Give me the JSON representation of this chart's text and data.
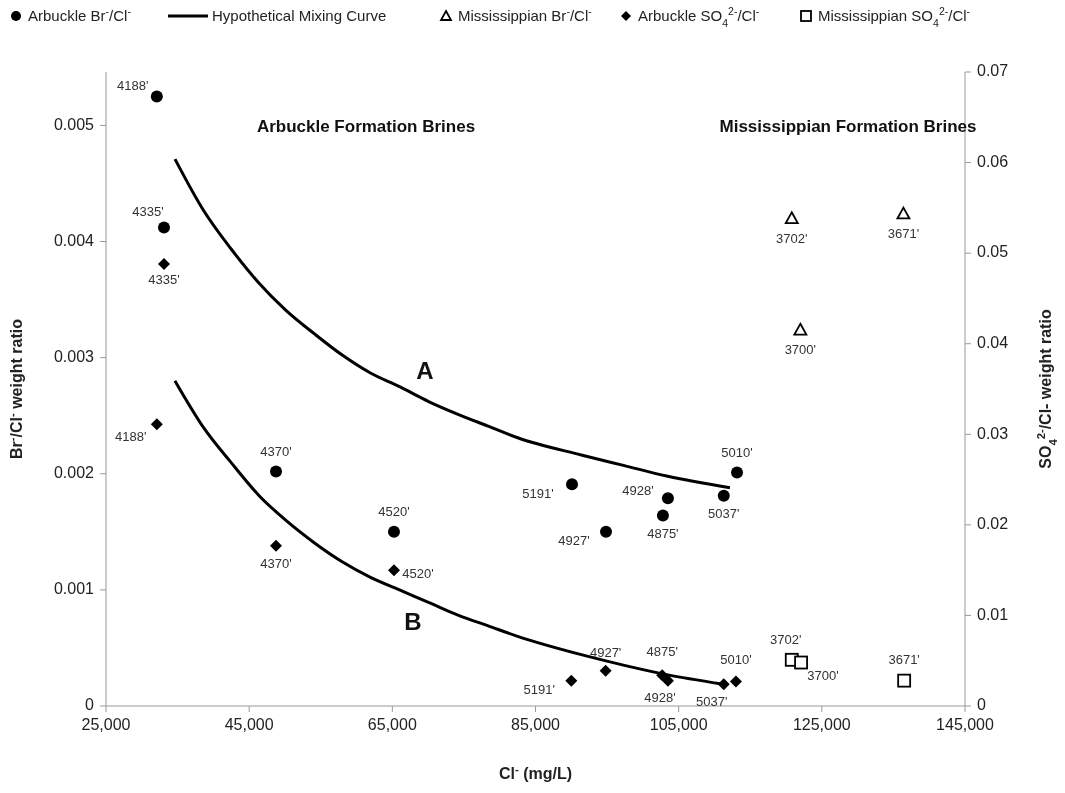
{
  "chart_data": {
    "type": "scatter",
    "xlabel": "Cl$^{-}$ (mg/L)",
    "ylabel": "Br$^{-}$/Cl$^{-}$  weight ratio",
    "y2label": "SO$_{4}$$^{2-}$/Cl-  weight ratio",
    "xlim": [
      25000,
      145000
    ],
    "xticks": [
      {
        "value": 25000,
        "label": "25,000"
      },
      {
        "value": 45000,
        "label": "45,000"
      },
      {
        "value": 65000,
        "label": "65,000"
      },
      {
        "value": 85000,
        "label": "85,000"
      },
      {
        "value": 105000,
        "label": "105,000"
      },
      {
        "value": 125000,
        "label": "125,000"
      },
      {
        "value": 145000,
        "label": "145,000"
      }
    ],
    "ylim": [
      0,
      0.00546
    ],
    "yticks": [
      0,
      0.001,
      0.002,
      0.003,
      0.004,
      0.005
    ],
    "y2lim": [
      0,
      0.07
    ],
    "y2ticks": [
      0,
      0.01,
      0.02,
      0.03,
      0.04,
      0.05,
      0.06,
      0.07
    ],
    "grid": false,
    "legend": "top",
    "annotations": [
      "Arbuckle Formation Brines",
      "Mississippian Formation Brines",
      "A",
      "B",
      {
        "text": "4188'",
        "x": 32100,
        "y": 0.00525
      },
      {
        "text": "4335'",
        "x": 33100,
        "y": 0.00412
      },
      {
        "text": "4370'",
        "x": 48750,
        "y": 0.00202
      },
      {
        "text": "4520'",
        "x": 65230,
        "y": 0.0015
      },
      {
        "text": "5191'",
        "x": 90100,
        "y": 0.00191
      },
      {
        "text": "4927'",
        "x": 94850,
        "y": 0.0015
      },
      {
        "text": "4875'",
        "x": 102800,
        "y": 0.00164
      },
      {
        "text": "4928'",
        "x": 103500,
        "y": 0.00179
      },
      {
        "text": "5037'",
        "x": 111300,
        "y": 0.00181
      },
      {
        "text": "5010'",
        "x": 113150,
        "y": 0.00201
      },
      {
        "text": "3702'",
        "x": 120800,
        "y": 0.0042
      },
      {
        "text": "3671'",
        "x": 136400,
        "y": 0.00424
      },
      {
        "text": "3700'",
        "x": 122000,
        "y": 0.00324
      },
      {
        "text": "4335'",
        "x": 33100,
        "y": 0.00381
      },
      {
        "text": "4188'",
        "x": 32100,
        "y": 0.00243
      },
      {
        "text": "4370'",
        "x": 48750,
        "y": 0.00138
      },
      {
        "text": "4520'",
        "x": 65230,
        "y": 0.00117
      },
      {
        "text": "5191'",
        "x": 90000,
        "y": 0.00022
      },
      {
        "text": "4927'",
        "x": 94800,
        "y": 0.0003
      },
      {
        "text": "4875'",
        "x": 102700,
        "y": 0.00027
      },
      {
        "text": "4928'",
        "x": 103500,
        "y": 0.00022
      },
      {
        "text": "5037'",
        "x": 111300,
        "y": 0.00019
      },
      {
        "text": "5010'",
        "x": 113000,
        "y": 0.00021
      },
      {
        "text": "3702'",
        "x": 120800,
        "y": 0.0004
      },
      {
        "text": "3700'",
        "x": 122100,
        "y": 0.00037
      },
      {
        "text": "3671'",
        "x": 136500,
        "y": 0.00022
      }
    ],
    "series": [
      {
        "name": "Arbuckle Br$^{-}$/Cl$^{-}$",
        "marker": "circle",
        "color": "#000000",
        "x": [
          32100,
          33100,
          48750,
          65230,
          90100,
          94850,
          102800,
          103500,
          111300,
          113150
        ],
        "values": [
          0.00525,
          0.00412,
          0.00202,
          0.0015,
          0.00191,
          0.0015,
          0.00164,
          0.00179,
          0.00181,
          0.00201
        ]
      },
      {
        "name": "Hypothetical Mixing Curve",
        "type": "line",
        "marker": "none",
        "line_style": "solid",
        "color": "#000000",
        "x": [
          34640,
          38610,
          42430,
          46260,
          50100,
          54220,
          58050,
          61880,
          66000,
          70140,
          74260,
          78390,
          82510,
          91530,
          97420,
          103320,
          112160
        ],
        "values": [
          0.00471,
          0.00427,
          0.00394,
          0.00365,
          0.00341,
          0.0032,
          0.00302,
          0.00287,
          0.00275,
          0.00262,
          0.00251,
          0.00241,
          0.00231,
          0.00216,
          0.00207,
          0.00198,
          0.00188
        ]
      },
      {
        "name": "Mississippian Br$^{-}$/Cl$^{-}$",
        "marker": "triangle",
        "color": "#000000",
        "x": [
          120800,
          136400,
          122000
        ],
        "values": [
          0.0042,
          0.00424,
          0.00324
        ]
      },
      {
        "name": "Arbuckle SO$_{4}$$^{2-}$/Cl$^{-}$",
        "marker": "diamond",
        "axis": "y2",
        "color": "#000000",
        "x": [
          33100,
          32100,
          48750,
          65230,
          90000,
          94800,
          102700,
          103500,
          111300,
          113000
        ],
        "values": [
          0.0488,
          0.0311,
          0.0177,
          0.015,
          0.0028,
          0.0039,
          0.0034,
          0.0028,
          0.0024,
          0.0027
        ]
      },
      {
        "name": "Mississippian SO$_{4}$$^{2-}$/Cl$^{-}$",
        "marker": "square",
        "axis": "y2",
        "color": "#000000",
        "x": [
          120800,
          122100,
          136500
        ],
        "values": [
          0.0051,
          0.0048,
          0.0028
        ]
      },
      {
        "type": "line",
        "marker": "none",
        "line_style": "solid",
        "color": "#000000",
        "x": [
          34640,
          38610,
          42430,
          46260,
          50100,
          54220,
          58050,
          61880,
          66000,
          70140,
          74260,
          78390,
          82510,
          91530,
          97420,
          103320,
          111000
        ],
        "values": [
          0.0028,
          0.0024,
          0.0021,
          0.00182,
          0.0016,
          0.0014,
          0.00124,
          0.00111,
          0.001,
          0.00089,
          0.00078,
          0.00069,
          0.0006,
          0.00044,
          0.00035,
          0.00027,
          0.00019
        ]
      }
    ]
  }
}
